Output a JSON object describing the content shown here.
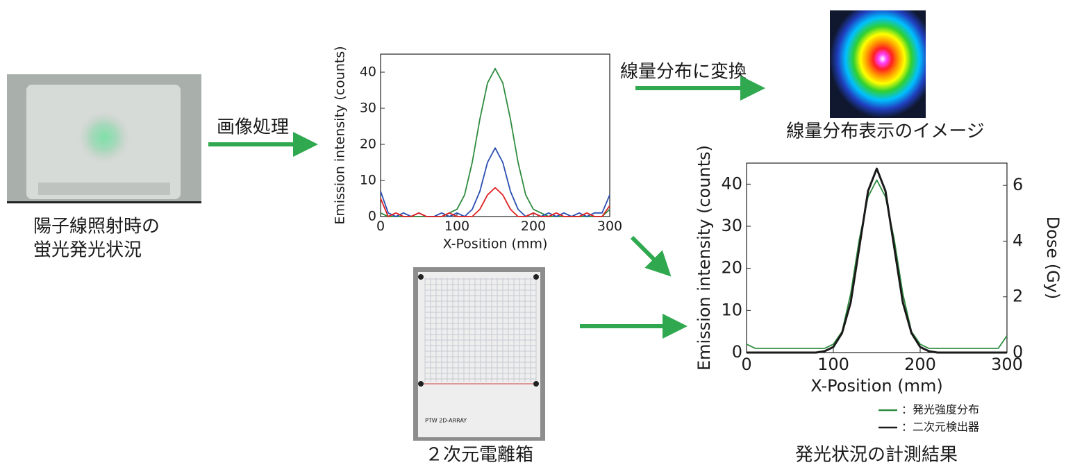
{
  "labels": {
    "photo_caption": [
      "陽子線照射時の",
      "蛍光発光状況"
    ],
    "arrow_processing": "画像処理",
    "arrow_convert": "線量分布に変換",
    "dose_image_caption": "線量分布表示のイメージ",
    "array_brand": "PTW 2D-ARRAY",
    "array_caption": "２次元電離箱",
    "result_caption": "発光状況の計測結果"
  },
  "chart_data": [
    {
      "type": "line",
      "xlabel": "X-Position (mm)",
      "ylabel": "Emission intensity (counts)",
      "x": [
        0,
        10,
        20,
        30,
        40,
        50,
        60,
        70,
        80,
        90,
        100,
        110,
        120,
        130,
        140,
        150,
        160,
        170,
        180,
        190,
        200,
        210,
        220,
        230,
        240,
        250,
        260,
        270,
        280,
        290,
        300
      ],
      "xlim": [
        0,
        300
      ],
      "ylim": [
        0,
        45
      ],
      "xticks": [
        0,
        100,
        200,
        300
      ],
      "yticks": [
        0,
        10,
        20,
        30,
        40
      ],
      "series": [
        {
          "color": "#2e8b3e",
          "values": [
            1,
            0,
            0,
            0,
            0,
            0,
            0,
            0,
            0,
            1,
            2,
            6,
            15,
            27,
            37,
            41,
            37,
            27,
            15,
            6,
            2,
            1,
            0,
            0,
            0,
            0,
            0,
            0,
            0,
            0,
            2
          ]
        },
        {
          "color": "#2a4db0",
          "values": [
            7,
            1,
            0,
            1,
            0,
            1,
            0,
            0,
            1,
            0,
            1,
            0,
            2,
            7,
            15,
            19,
            15,
            7,
            2,
            0,
            1,
            0,
            1,
            0,
            1,
            0,
            1,
            0,
            1,
            1,
            6
          ]
        },
        {
          "color": "#e02020",
          "values": [
            5,
            0,
            1,
            0,
            0,
            1,
            0,
            0,
            0,
            1,
            0,
            0,
            0,
            2,
            6,
            8,
            6,
            2,
            0,
            0,
            1,
            0,
            0,
            1,
            0,
            0,
            0,
            1,
            0,
            0,
            3
          ]
        }
      ]
    },
    {
      "type": "line",
      "xlabel": "X-Position (mm)",
      "ylabel": "Emission intensity (counts)",
      "y2label": "Dose (Gy)",
      "x": [
        0,
        10,
        20,
        30,
        40,
        50,
        60,
        70,
        80,
        90,
        100,
        110,
        120,
        130,
        140,
        150,
        160,
        170,
        180,
        190,
        200,
        210,
        220,
        230,
        240,
        250,
        260,
        270,
        280,
        290,
        300
      ],
      "xlim": [
        0,
        300
      ],
      "ylim": [
        0,
        45
      ],
      "y2lim": [
        0,
        6.8
      ],
      "xticks": [
        0,
        100,
        200,
        300
      ],
      "yticks": [
        0,
        10,
        20,
        30,
        40
      ],
      "y2ticks": [
        0,
        2,
        4,
        6
      ],
      "series": [
        {
          "name": "：発光強度分布",
          "color": "#2e8b3e",
          "values": [
            2,
            1,
            1,
            1,
            1,
            1,
            1,
            1,
            1,
            1,
            2,
            5,
            14,
            27,
            37,
            41,
            37,
            27,
            14,
            5,
            2,
            1,
            1,
            1,
            1,
            1,
            1,
            1,
            1,
            1,
            4
          ]
        },
        {
          "name": "：二次元検出器",
          "color": "#1a1a1a",
          "axis": "y2",
          "values": [
            0,
            0,
            0,
            0,
            0,
            0,
            0,
            0,
            0,
            0.05,
            0.2,
            0.7,
            1.8,
            3.8,
            5.8,
            6.6,
            5.8,
            3.8,
            1.8,
            0.7,
            0.2,
            0.05,
            0,
            0,
            0,
            0,
            0,
            0,
            0,
            0,
            0
          ]
        }
      ]
    }
  ]
}
